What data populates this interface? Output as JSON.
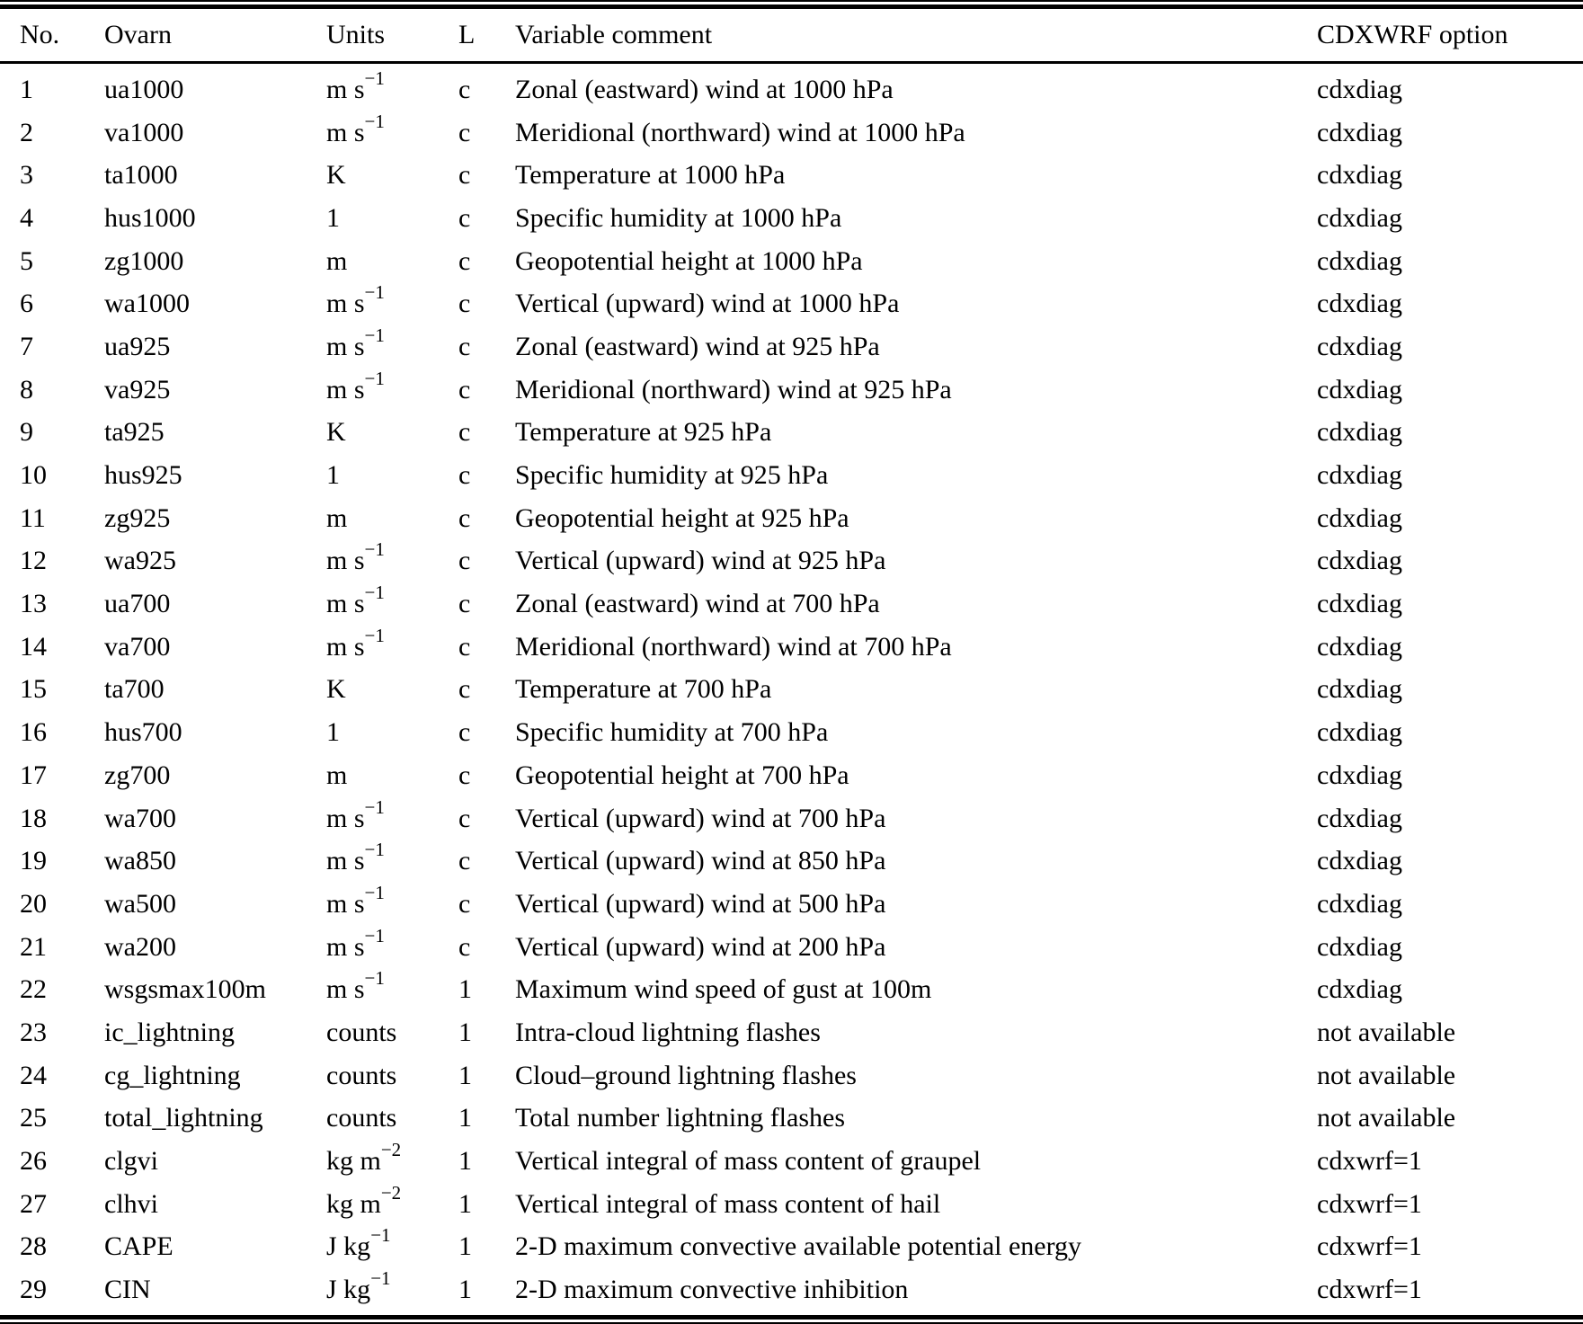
{
  "colors": {
    "text": "#000000",
    "background": "#ffffff",
    "rule": "#000000"
  },
  "table": {
    "columns": [
      "No.",
      "Ovarn",
      "Units",
      "L",
      "Variable comment",
      "CDXWRF option"
    ],
    "rows": [
      {
        "no": "1",
        "ovarn": "ua1000",
        "units": "m s^−1",
        "level": "c",
        "comment": "Zonal (eastward) wind at 1000 hPa",
        "option": "cdxdiag"
      },
      {
        "no": "2",
        "ovarn": "va1000",
        "units": "m s^−1",
        "level": "c",
        "comment": "Meridional (northward) wind at 1000 hPa",
        "option": "cdxdiag"
      },
      {
        "no": "3",
        "ovarn": "ta1000",
        "units": "K",
        "level": "c",
        "comment": "Temperature at 1000 hPa",
        "option": "cdxdiag"
      },
      {
        "no": "4",
        "ovarn": "hus1000",
        "units": "1",
        "level": "c",
        "comment": "Specific humidity at 1000 hPa",
        "option": "cdxdiag"
      },
      {
        "no": "5",
        "ovarn": "zg1000",
        "units": "m",
        "level": "c",
        "comment": "Geopotential height at 1000 hPa",
        "option": "cdxdiag"
      },
      {
        "no": "6",
        "ovarn": "wa1000",
        "units": "m s^−1",
        "level": "c",
        "comment": "Vertical (upward) wind at 1000 hPa",
        "option": "cdxdiag"
      },
      {
        "no": "7",
        "ovarn": "ua925",
        "units": "m s^−1",
        "level": "c",
        "comment": "Zonal (eastward) wind at 925 hPa",
        "option": "cdxdiag"
      },
      {
        "no": "8",
        "ovarn": "va925",
        "units": "m s^−1",
        "level": "c",
        "comment": "Meridional (northward) wind at 925 hPa",
        "option": "cdxdiag"
      },
      {
        "no": "9",
        "ovarn": "ta925",
        "units": "K",
        "level": "c",
        "comment": "Temperature at 925 hPa",
        "option": "cdxdiag"
      },
      {
        "no": "10",
        "ovarn": "hus925",
        "units": "1",
        "level": "c",
        "comment": "Specific humidity at 925 hPa",
        "option": "cdxdiag"
      },
      {
        "no": "11",
        "ovarn": "zg925",
        "units": "m",
        "level": "c",
        "comment": "Geopotential height at 925 hPa",
        "option": "cdxdiag"
      },
      {
        "no": "12",
        "ovarn": "wa925",
        "units": "m s^−1",
        "level": "c",
        "comment": "Vertical (upward) wind at 925 hPa",
        "option": "cdxdiag"
      },
      {
        "no": "13",
        "ovarn": "ua700",
        "units": "m s^−1",
        "level": "c",
        "comment": "Zonal (eastward) wind at 700 hPa",
        "option": "cdxdiag"
      },
      {
        "no": "14",
        "ovarn": "va700",
        "units": "m s^−1",
        "level": "c",
        "comment": "Meridional (northward) wind at 700 hPa",
        "option": "cdxdiag"
      },
      {
        "no": "15",
        "ovarn": "ta700",
        "units": "K",
        "level": "c",
        "comment": "Temperature at 700 hPa",
        "option": "cdxdiag"
      },
      {
        "no": "16",
        "ovarn": "hus700",
        "units": "1",
        "level": "c",
        "comment": "Specific humidity at 700 hPa",
        "option": "cdxdiag"
      },
      {
        "no": "17",
        "ovarn": "zg700",
        "units": "m",
        "level": "c",
        "comment": "Geopotential height at 700 hPa",
        "option": "cdxdiag"
      },
      {
        "no": "18",
        "ovarn": "wa700",
        "units": "m s^−1",
        "level": "c",
        "comment": "Vertical (upward) wind at 700 hPa",
        "option": "cdxdiag"
      },
      {
        "no": "19",
        "ovarn": "wa850",
        "units": "m s^−1",
        "level": "c",
        "comment": "Vertical (upward) wind at 850 hPa",
        "option": "cdxdiag"
      },
      {
        "no": "20",
        "ovarn": "wa500",
        "units": "m s^−1",
        "level": "c",
        "comment": "Vertical (upward) wind at 500 hPa",
        "option": "cdxdiag"
      },
      {
        "no": "21",
        "ovarn": "wa200",
        "units": "m s^−1",
        "level": "c",
        "comment": "Vertical (upward) wind at 200 hPa",
        "option": "cdxdiag"
      },
      {
        "no": "22",
        "ovarn": "wsgsmax100m",
        "units": "m s^−1",
        "level": "1",
        "comment": "Maximum wind speed of gust at 100m",
        "option": "cdxdiag"
      },
      {
        "no": "23",
        "ovarn": "ic_lightning",
        "units": "counts",
        "level": "1",
        "comment": "Intra-cloud lightning flashes",
        "option": "not available"
      },
      {
        "no": "24",
        "ovarn": "cg_lightning",
        "units": "counts",
        "level": "1",
        "comment": "Cloud–ground lightning flashes",
        "option": "not available"
      },
      {
        "no": "25",
        "ovarn": "total_lightning",
        "units": "counts",
        "level": "1",
        "comment": "Total number lightning flashes",
        "option": "not available"
      },
      {
        "no": "26",
        "ovarn": "clgvi",
        "units": "kg m^−2",
        "level": "1",
        "comment": "Vertical integral of mass content of graupel",
        "option": "cdxwrf=1"
      },
      {
        "no": "27",
        "ovarn": "clhvi",
        "units": "kg m^−2",
        "level": "1",
        "comment": "Vertical integral of mass content of hail",
        "option": "cdxwrf=1"
      },
      {
        "no": "28",
        "ovarn": "CAPE",
        "units": "J kg^−1",
        "level": "1",
        "comment": "2-D maximum convective available potential energy",
        "option": "cdxwrf=1"
      },
      {
        "no": "29",
        "ovarn": "CIN",
        "units": "J kg^−1",
        "level": "1",
        "comment": "2-D maximum convective inhibition",
        "option": "cdxwrf=1"
      }
    ]
  }
}
